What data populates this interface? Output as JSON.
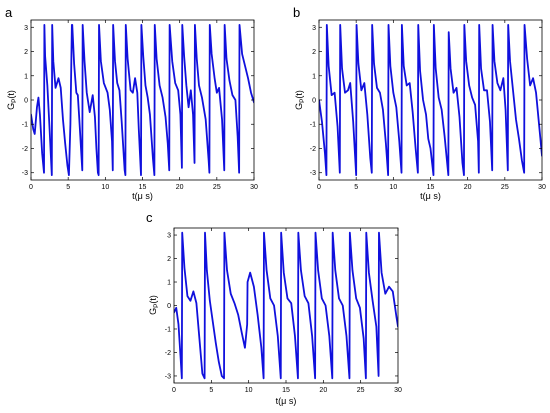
{
  "figure": {
    "background": "#ffffff",
    "line_color": "#1010dd",
    "axis_color": "#000000"
  },
  "chart_data": [
    {
      "panel": "a",
      "type": "line",
      "xlabel": "t(μ s)",
      "ylabel": "G_P(t)",
      "ylabel_main": "G",
      "ylabel_sub": "P",
      "ylabel_tail": "(t)",
      "xlim": [
        0,
        30
      ],
      "ylim": [
        -3.3,
        3.3
      ],
      "xticks": [
        0,
        5,
        10,
        15,
        20,
        25,
        30
      ],
      "yticks": [
        -3,
        -2,
        -1,
        0,
        1,
        2,
        3
      ],
      "grid": false,
      "series": [
        {
          "color": "#1010dd",
          "x": [
            0,
            0.3,
            0.5,
            0.8,
            1.0,
            1.2,
            1.5,
            1.75,
            1.8,
            1.9,
            2.2,
            2.5,
            2.8,
            2.85,
            3.0,
            3.3,
            3.7,
            4.0,
            4.3,
            4.6,
            4.9,
            5.1,
            5.3,
            5.5,
            5.55,
            5.8,
            6.1,
            6.3,
            6.5,
            6.9,
            6.95,
            7.2,
            7.5,
            7.9,
            8.3,
            8.6,
            8.8,
            9.0,
            9.1,
            9.15,
            9.4,
            9.8,
            10.3,
            10.6,
            10.9,
            11.0,
            11.05,
            11.3,
            11.6,
            11.9,
            12.2,
            12.6,
            12.7,
            12.75,
            13.0,
            13.4,
            13.7,
            14.0,
            14.3,
            14.5,
            14.8,
            14.85,
            15.1,
            15.4,
            15.7,
            16.0,
            16.4,
            16.6,
            16.65,
            16.9,
            17.3,
            17.7,
            18.1,
            18.4,
            18.6,
            18.65,
            19.0,
            19.4,
            19.8,
            20.1,
            20.3,
            20.35,
            20.6,
            20.9,
            21.2,
            21.5,
            21.8,
            22.0,
            22.05,
            22.3,
            22.6,
            23.0,
            23.5,
            23.9,
            24.0,
            24.05,
            24.3,
            24.7,
            25.0,
            25.3,
            25.7,
            26.0,
            26.05,
            26.3,
            26.7,
            27.1,
            27.5,
            27.8,
            28.0,
            28.05,
            28.4,
            28.8,
            29.2,
            29.6,
            30.0
          ],
          "y": [
            -0.6,
            -1.2,
            -1.4,
            -0.3,
            0.1,
            -0.6,
            -2.2,
            -3.0,
            3.1,
            1.8,
            0.6,
            -1.2,
            -3.1,
            3.1,
            1.6,
            0.5,
            0.9,
            0.5,
            -0.8,
            -1.8,
            -2.7,
            -3.1,
            -1.0,
            3.1,
            3.1,
            1.5,
            0.3,
            0.2,
            -0.8,
            -2.9,
            3.1,
            1.6,
            0.3,
            -0.5,
            0.2,
            -0.7,
            -2.0,
            -3.0,
            -3.1,
            3.1,
            1.6,
            0.7,
            0.3,
            -0.4,
            -1.7,
            -2.9,
            3.1,
            1.6,
            0.7,
            0.4,
            -0.9,
            -2.9,
            -3.1,
            3.1,
            1.7,
            0.4,
            0.3,
            0.9,
            0.3,
            -1.2,
            -3.1,
            3.1,
            1.8,
            0.6,
            0.1,
            -0.6,
            -2.4,
            -3.1,
            3.1,
            1.7,
            0.6,
            0.1,
            -0.7,
            -1.8,
            -2.9,
            3.1,
            1.6,
            0.7,
            0.4,
            -0.6,
            -2.8,
            3.1,
            1.8,
            0.6,
            -0.3,
            0.4,
            -0.6,
            -2.6,
            3.1,
            1.7,
            0.6,
            0.1,
            -0.8,
            -2.5,
            -3.0,
            3.1,
            1.9,
            0.9,
            0.3,
            0.5,
            -0.8,
            -2.9,
            3.1,
            1.7,
            0.8,
            0.2,
            0.0,
            -1.5,
            -3.0,
            3.1,
            1.9,
            1.4,
            0.9,
            0.3,
            -0.1
          ]
        }
      ]
    },
    {
      "panel": "b",
      "type": "line",
      "xlabel": "t(μ s)",
      "ylabel": "G_P(t)",
      "ylabel_main": "G",
      "ylabel_sub": "P",
      "ylabel_tail": "(t)",
      "xlim": [
        0,
        30
      ],
      "ylim": [
        -3.3,
        3.3
      ],
      "xticks": [
        0,
        5,
        10,
        15,
        20,
        25,
        30
      ],
      "yticks": [
        -3,
        -2,
        -1,
        0,
        1,
        2,
        3
      ],
      "grid": false,
      "series": [
        {
          "color": "#1010dd",
          "x": [
            0,
            0.4,
            0.8,
            1.0,
            1.05,
            1.3,
            1.7,
            2.1,
            2.5,
            2.8,
            2.85,
            3.1,
            3.5,
            3.9,
            4.2,
            4.6,
            5.0,
            5.05,
            5.3,
            5.7,
            6.1,
            6.5,
            6.9,
            7.1,
            7.15,
            7.4,
            7.8,
            8.2,
            8.6,
            9.0,
            9.3,
            9.35,
            9.6,
            10.0,
            10.4,
            10.8,
            11.1,
            11.15,
            11.4,
            11.8,
            12.2,
            12.6,
            13.0,
            13.3,
            13.35,
            13.6,
            14.0,
            14.4,
            14.7,
            15.0,
            15.4,
            15.45,
            15.7,
            16.1,
            16.5,
            16.9,
            17.4,
            17.45,
            17.7,
            18.1,
            18.5,
            18.9,
            19.3,
            19.5,
            19.55,
            19.8,
            20.2,
            20.6,
            21.0,
            21.4,
            21.5,
            21.55,
            21.8,
            22.2,
            22.6,
            23.0,
            23.3,
            23.35,
            23.6,
            24.0,
            24.4,
            24.8,
            25.1,
            25.4,
            25.45,
            25.7,
            26.1,
            26.5,
            26.9,
            27.3,
            27.6,
            27.65,
            28.0,
            28.4,
            28.8,
            29.2,
            29.6,
            30.0
          ],
          "y": [
            0.0,
            -0.9,
            -2.2,
            -3.1,
            3.1,
            1.4,
            0.2,
            0.3,
            -1.1,
            -3.0,
            3.1,
            1.3,
            0.3,
            0.4,
            0.7,
            -0.9,
            -3.1,
            3.1,
            1.5,
            0.4,
            0.7,
            -0.6,
            -2.4,
            -3.0,
            3.1,
            1.5,
            0.5,
            0.3,
            -0.4,
            -1.8,
            -3.1,
            3.1,
            1.4,
            0.3,
            -0.3,
            -1.7,
            -3.0,
            3.1,
            1.4,
            0.6,
            0.7,
            -0.5,
            -2.0,
            -3.0,
            3.1,
            1.2,
            0.0,
            -0.6,
            -1.6,
            -2.0,
            -3.1,
            3.1,
            1.3,
            0.1,
            -0.4,
            -1.5,
            -3.1,
            2.8,
            1.3,
            0.3,
            0.5,
            -0.7,
            -2.6,
            -3.1,
            3.1,
            1.6,
            0.6,
            0.1,
            -0.2,
            -1.7,
            -3.0,
            3.1,
            1.3,
            0.4,
            0.4,
            -0.9,
            -2.9,
            3.1,
            1.6,
            0.7,
            0.4,
            0.9,
            -0.4,
            -2.9,
            3.1,
            1.6,
            0.4,
            -0.8,
            -1.6,
            -2.5,
            -3.0,
            3.1,
            1.7,
            0.6,
            0.9,
            0.3,
            -1.0,
            -2.3
          ]
        }
      ]
    },
    {
      "panel": "c",
      "type": "line",
      "xlabel": "t(μ s)",
      "ylabel": "G_P(t)",
      "ylabel_main": "G",
      "ylabel_sub": "P",
      "ylabel_tail": "(t)",
      "xlim": [
        0,
        30
      ],
      "ylim": [
        -3.3,
        3.3
      ],
      "xticks": [
        0,
        5,
        10,
        15,
        20,
        25,
        30
      ],
      "yticks": [
        -3,
        -2,
        -1,
        0,
        1,
        2,
        3
      ],
      "grid": false,
      "series": [
        {
          "color": "#1010dd",
          "x": [
            0,
            0.3,
            0.6,
            0.9,
            1.05,
            1.1,
            1.4,
            1.8,
            2.2,
            2.6,
            3.0,
            3.4,
            3.8,
            4.1,
            4.15,
            4.4,
            4.8,
            5.2,
            5.6,
            6.0,
            6.4,
            6.7,
            6.75,
            7.1,
            7.6,
            8.1,
            8.6,
            9.1,
            9.5,
            9.8,
            9.85,
            10.2,
            10.7,
            11.2,
            11.7,
            12.0,
            12.05,
            12.4,
            12.9,
            13.4,
            13.9,
            14.3,
            14.35,
            14.7,
            15.2,
            15.7,
            16.2,
            16.6,
            16.65,
            17.0,
            17.5,
            18.0,
            18.5,
            18.9,
            18.95,
            19.3,
            19.8,
            20.3,
            20.8,
            21.2,
            21.25,
            21.6,
            22.1,
            22.6,
            23.1,
            23.5,
            23.55,
            23.9,
            24.4,
            24.9,
            25.4,
            25.7,
            25.75,
            26.1,
            26.6,
            27.1,
            27.4,
            27.45,
            27.8,
            28.3,
            28.8,
            29.3,
            29.8,
            30.0
          ],
          "y": [
            -0.3,
            -0.1,
            -0.8,
            -2.3,
            -3.1,
            3.1,
            1.6,
            0.4,
            0.2,
            0.6,
            0.1,
            -1.4,
            -2.9,
            -3.1,
            3.1,
            1.5,
            0.2,
            -0.7,
            -1.6,
            -2.4,
            -3.0,
            -3.1,
            3.1,
            1.5,
            0.5,
            0.1,
            -0.4,
            -1.2,
            -1.8,
            -0.8,
            1.0,
            1.4,
            0.8,
            -0.4,
            -1.8,
            -3.1,
            3.1,
            1.5,
            0.3,
            0.0,
            -1.3,
            -3.1,
            3.1,
            1.4,
            0.3,
            0.1,
            -1.3,
            -3.1,
            3.1,
            1.5,
            0.4,
            0.1,
            -1.3,
            -3.1,
            3.1,
            1.5,
            0.3,
            0.0,
            -1.3,
            -3.1,
            3.1,
            1.5,
            0.3,
            0.0,
            -1.3,
            -3.1,
            3.1,
            1.5,
            0.3,
            -0.1,
            -1.4,
            -3.1,
            3.1,
            1.4,
            0.2,
            -0.9,
            -3.0,
            3.1,
            1.4,
            0.5,
            0.8,
            0.6,
            -0.5,
            -0.9
          ]
        }
      ]
    }
  ]
}
